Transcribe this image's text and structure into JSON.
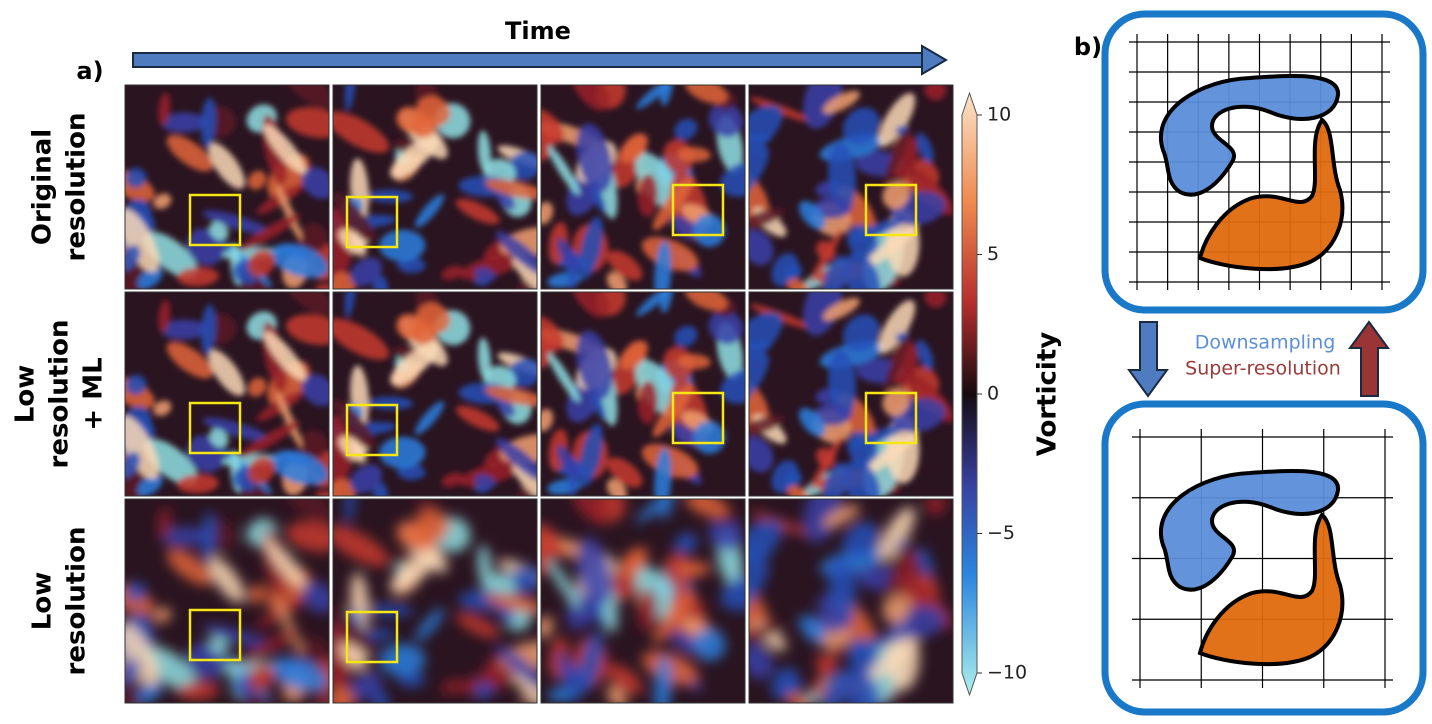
{
  "panel_a": {
    "label": "a)",
    "time_label": "Time",
    "rows": [
      {
        "label_lines": [
          "Original",
          "resolution"
        ]
      },
      {
        "label_lines": [
          "Low",
          "resolution",
          "+ ML"
        ]
      },
      {
        "label_lines": [
          "Low",
          "resolution"
        ]
      }
    ],
    "colorbar": {
      "label": "Vorticity",
      "lim": [
        -10,
        10
      ],
      "ticks": [
        10,
        5,
        0,
        {
          "value": -5,
          "label": "−5"
        },
        {
          "value": -10,
          "label": "−10"
        }
      ]
    }
  },
  "panel_b": {
    "label": "b)",
    "down_label": "Downsampling",
    "up_label": "Super-resolution"
  }
}
